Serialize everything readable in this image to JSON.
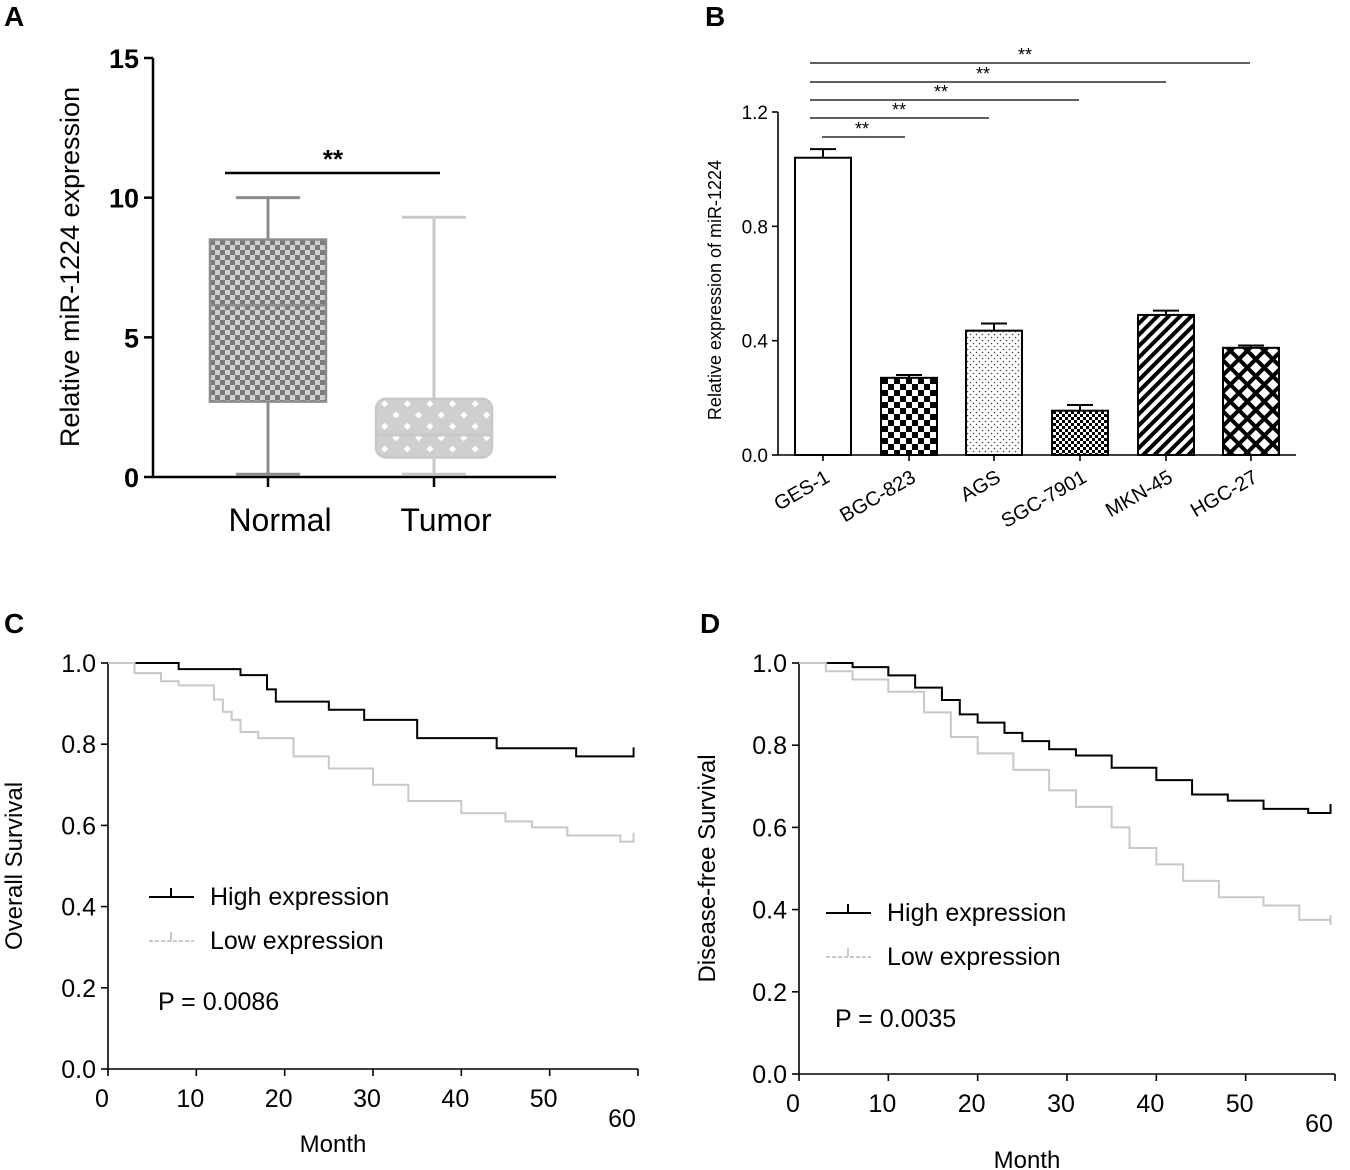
{
  "panels": {
    "A": "A",
    "B": "B",
    "C": "C",
    "D": "D"
  },
  "colors": {
    "axis": "#000000",
    "normal": "#8c8c8c",
    "tumor": "#c8c8c8",
    "high": "#000000",
    "low": "#c8c8c8"
  },
  "chart_data": [
    {
      "panel": "A",
      "type": "box",
      "categories": [
        "Normal",
        "Tumor"
      ],
      "ylabel": "Relative miR-1224  expression",
      "ylim": [
        0,
        15
      ],
      "yticks": [
        "0",
        "5",
        "10",
        "15"
      ],
      "boxes": [
        {
          "name": "Normal",
          "min": 0.1,
          "q1": 2.7,
          "median": 6.15,
          "q3": 8.5,
          "max": 10.0
        },
        {
          "name": "Tumor",
          "min": 0.1,
          "q1": 0.7,
          "median": 1.5,
          "q3": 2.8,
          "max": 9.3
        }
      ],
      "significance": [
        {
          "from": "Normal",
          "to": "Tumor",
          "label": "**"
        }
      ]
    },
    {
      "panel": "B",
      "type": "bar",
      "categories": [
        "GES-1",
        "BGC-823",
        "AGS",
        "SGC-7901",
        "MKN-45",
        "HGC-27"
      ],
      "values": [
        1.04,
        0.27,
        0.435,
        0.155,
        0.49,
        0.375
      ],
      "errors": [
        0.03,
        0.01,
        0.025,
        0.02,
        0.015,
        0.008
      ],
      "patterns": [
        "none",
        "checker",
        "dots",
        "finecheck",
        "diagonal",
        "crosshatch"
      ],
      "ylabel": "Relative expression of miR-1224",
      "ylim": [
        0,
        1.2
      ],
      "yticks": [
        "0.0",
        "0.4",
        "0.8",
        "1.2"
      ],
      "significance": [
        {
          "from": "GES-1",
          "to": "BGC-823",
          "label": "**"
        },
        {
          "from": "GES-1",
          "to": "AGS",
          "label": "**"
        },
        {
          "from": "GES-1",
          "to": "SGC-7901",
          "label": "**"
        },
        {
          "from": "GES-1",
          "to": "MKN-45",
          "label": "**"
        },
        {
          "from": "GES-1",
          "to": "HGC-27",
          "label": "**"
        }
      ]
    },
    {
      "panel": "C",
      "type": "line",
      "subtype": "kaplan-meier",
      "xlabel": "Month",
      "ylabel": "Overall Survival",
      "xlim": [
        0,
        60
      ],
      "ylim": [
        0,
        1.0
      ],
      "xticks": [
        "0",
        "10",
        "20",
        "30",
        "40",
        "50",
        "60"
      ],
      "yticks": [
        "0.0",
        "0.2",
        "0.4",
        "0.6",
        "0.8",
        "1.0"
      ],
      "pvalue": "P = 0.0086",
      "series": [
        {
          "name": "High expression",
          "x": [
            0,
            8,
            15,
            18,
            19,
            22,
            25,
            29,
            31,
            35,
            44,
            53,
            59.5
          ],
          "y": [
            1.0,
            0.985,
            0.97,
            0.935,
            0.905,
            0.905,
            0.885,
            0.86,
            0.86,
            0.815,
            0.79,
            0.77,
            0.77
          ]
        },
        {
          "name": "Low expression",
          "x": [
            0,
            3,
            6,
            8,
            12,
            13,
            14,
            15,
            17,
            21,
            25,
            30,
            34,
            40,
            45,
            48,
            52,
            58,
            59.5
          ],
          "y": [
            1.0,
            0.975,
            0.955,
            0.945,
            0.91,
            0.88,
            0.86,
            0.83,
            0.815,
            0.77,
            0.74,
            0.7,
            0.66,
            0.63,
            0.61,
            0.595,
            0.575,
            0.56,
            0.56
          ]
        }
      ]
    },
    {
      "panel": "D",
      "type": "line",
      "subtype": "kaplan-meier",
      "xlabel": "Month",
      "ylabel": "Disease-free Survival",
      "xlim": [
        0,
        60
      ],
      "ylim": [
        0,
        1.0
      ],
      "xticks": [
        "0",
        "10",
        "20",
        "30",
        "40",
        "50",
        "60"
      ],
      "yticks": [
        "0.0",
        "0.2",
        "0.4",
        "0.6",
        "0.8",
        "1.0"
      ],
      "pvalue": "P = 0.0035",
      "series": [
        {
          "name": "High expression",
          "x": [
            0,
            6,
            10,
            13,
            16,
            18,
            20,
            23,
            25,
            28,
            31,
            35,
            40,
            44,
            48,
            52,
            57,
            59.5
          ],
          "y": [
            1.0,
            0.99,
            0.97,
            0.94,
            0.91,
            0.875,
            0.855,
            0.83,
            0.81,
            0.79,
            0.775,
            0.745,
            0.715,
            0.68,
            0.665,
            0.645,
            0.635,
            0.635
          ]
        },
        {
          "name": "Low expression",
          "x": [
            0,
            3,
            6,
            10,
            14,
            17,
            20,
            24,
            28,
            31,
            35,
            37,
            40,
            43,
            47,
            52,
            56,
            59.5
          ],
          "y": [
            1.0,
            0.98,
            0.96,
            0.93,
            0.88,
            0.82,
            0.78,
            0.74,
            0.69,
            0.65,
            0.6,
            0.55,
            0.51,
            0.47,
            0.43,
            0.41,
            0.375,
            0.365
          ]
        }
      ]
    }
  ]
}
